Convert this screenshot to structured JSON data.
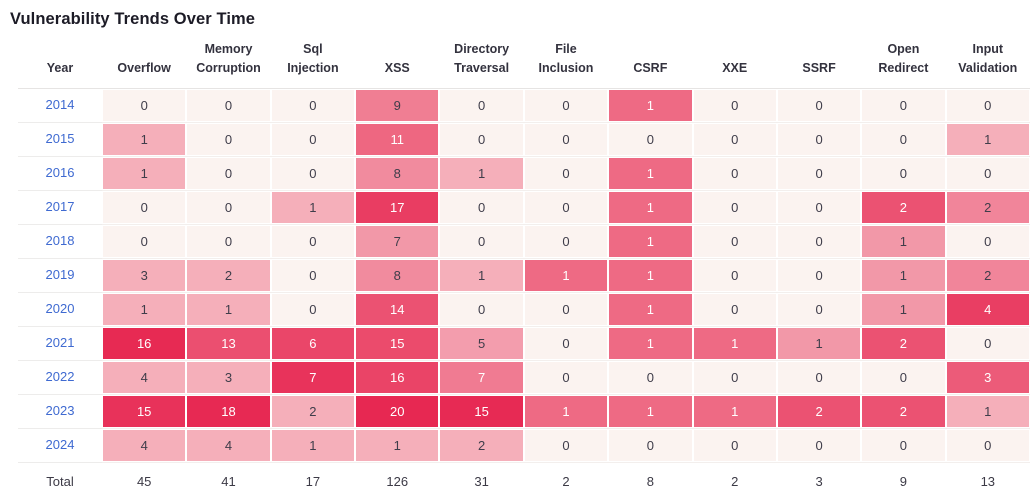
{
  "title": "Vulnerability Trends Over Time",
  "colors": {
    "heat_scale_low": "#fbf3f0",
    "heat_scale_mid": "#ee6a84",
    "heat_scale_high": "#e6214d",
    "cell_text_dark": "#3f3d4a",
    "cell_text_light": "#ffffff",
    "year_link_blue": "#3f6ad1",
    "title_color": "#1c1b26",
    "header_text_color": "#33323e",
    "header_rule_color": "#e6e4e3",
    "row_rule_color": "#edeceb"
  },
  "chart_data": {
    "type": "heatmap",
    "title": "Vulnerability Trends Over Time",
    "row_label_header": "Year",
    "columns": [
      "Overflow",
      "Memory Corruption",
      "Sql Injection",
      "XSS",
      "Directory Traversal",
      "File Inclusion",
      "CSRF",
      "XXE",
      "SSRF",
      "Open Redirect",
      "Input Validation"
    ],
    "rows": [
      "2014",
      "2015",
      "2016",
      "2017",
      "2018",
      "2019",
      "2020",
      "2021",
      "2022",
      "2023",
      "2024"
    ],
    "values": [
      [
        0,
        0,
        0,
        9,
        0,
        0,
        1,
        0,
        0,
        0,
        0
      ],
      [
        1,
        0,
        0,
        11,
        0,
        0,
        0,
        0,
        0,
        0,
        1
      ],
      [
        1,
        0,
        0,
        8,
        1,
        0,
        1,
        0,
        0,
        0,
        0
      ],
      [
        0,
        0,
        1,
        17,
        0,
        0,
        1,
        0,
        0,
        2,
        2
      ],
      [
        0,
        0,
        0,
        7,
        0,
        0,
        1,
        0,
        0,
        1,
        0
      ],
      [
        3,
        2,
        0,
        8,
        1,
        1,
        1,
        0,
        0,
        1,
        2
      ],
      [
        1,
        1,
        0,
        14,
        0,
        0,
        1,
        0,
        0,
        1,
        4
      ],
      [
        16,
        13,
        6,
        15,
        5,
        0,
        1,
        1,
        1,
        2,
        0
      ],
      [
        4,
        3,
        7,
        16,
        7,
        0,
        0,
        0,
        0,
        0,
        3
      ],
      [
        15,
        18,
        2,
        20,
        15,
        1,
        1,
        1,
        2,
        2,
        1
      ],
      [
        4,
        4,
        1,
        1,
        2,
        0,
        0,
        0,
        0,
        0,
        0
      ]
    ],
    "totals_label": "Total",
    "totals": [
      45,
      41,
      17,
      126,
      31,
      2,
      8,
      2,
      3,
      9,
      13
    ],
    "legend_position": "none",
    "grid": false
  }
}
